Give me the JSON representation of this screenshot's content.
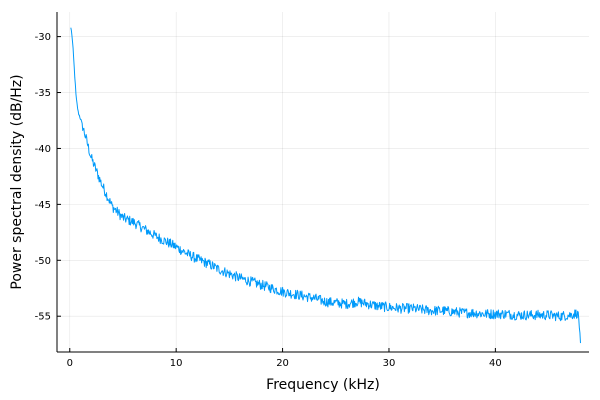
{
  "chart_data": {
    "type": "line",
    "xlabel": "Frequency (kHz)",
    "ylabel": "Power spectral density (dB/Hz)",
    "xlim": [
      -1.2,
      48.8
    ],
    "ylim": [
      -58.2,
      -27.8
    ],
    "xticks": [
      0,
      10,
      20,
      30,
      40
    ],
    "yticks": [
      -55,
      -50,
      -45,
      -40,
      -35,
      -30
    ],
    "grid": true,
    "legend": "none",
    "series_color": "#009AFA",
    "series": [
      {
        "x": [
          0.1,
          0.2,
          0.3,
          0.4,
          0.5,
          0.6,
          0.8,
          1.0,
          1.5,
          2.0,
          2.5,
          3.0,
          3.5,
          4.0,
          5.0,
          6.0,
          7.0,
          8.0,
          9.0,
          10.0,
          11.0,
          12.0,
          13.0,
          14.0,
          15.0,
          16.0,
          17.0,
          18.0,
          19.0,
          20.0,
          21.0,
          22.0,
          23.0,
          24.0,
          25.0,
          26.0,
          27.0,
          28.0,
          29.0,
          30.0,
          31.0,
          32.0,
          33.0,
          34.0,
          35.0,
          36.0,
          37.0,
          38.0,
          39.0,
          40.0,
          41.0,
          42.0,
          43.0,
          44.0,
          45.0,
          46.0,
          47.0,
          47.8,
          48.0
        ],
        "y": [
          -29.2,
          -29.8,
          -31.0,
          -32.5,
          -34.0,
          -35.5,
          -36.8,
          -37.3,
          -39.0,
          -40.8,
          -42.0,
          -43.2,
          -44.2,
          -45.2,
          -46.2,
          -46.6,
          -47.2,
          -47.8,
          -48.3,
          -48.8,
          -49.4,
          -49.9,
          -50.3,
          -50.8,
          -51.2,
          -51.6,
          -51.9,
          -52.2,
          -52.5,
          -52.8,
          -53.0,
          -53.2,
          -53.4,
          -53.7,
          -53.8,
          -53.9,
          -53.7,
          -53.9,
          -54.1,
          -54.2,
          -54.3,
          -54.3,
          -54.4,
          -54.5,
          -54.5,
          -54.6,
          -54.7,
          -54.7,
          -54.8,
          -54.8,
          -54.8,
          -54.9,
          -54.9,
          -54.9,
          -54.9,
          -55.0,
          -54.9,
          -54.7,
          -57.4
        ]
      }
    ]
  }
}
